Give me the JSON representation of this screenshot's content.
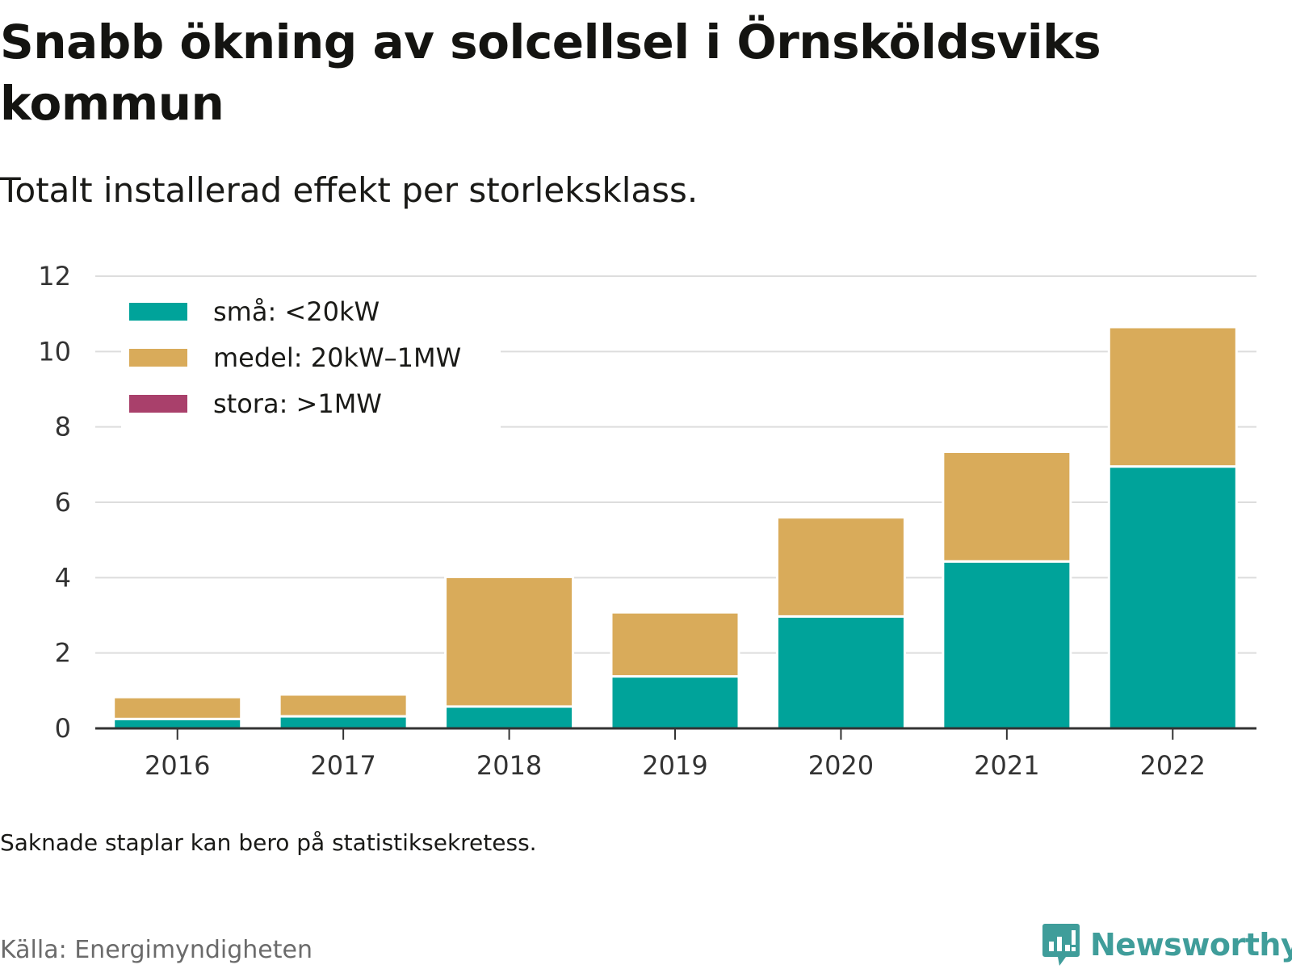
{
  "title": "Snabb ökning av solcellsel i Örnsköldsviks kommun",
  "subtitle": "Totalt installerad effekt per storleksklass.",
  "note": "Saknade staplar kan bero på statistiksekretess.",
  "source": "Källa: Energimyndigheten",
  "brand": {
    "name": "Newsworthy",
    "logo_icon": "bar-chart-speech-bubble-icon"
  },
  "colors": {
    "sma": "#00a39a",
    "medel": "#d9ab5a",
    "stora": "#a9406b",
    "grid": "#dddddd",
    "axis": "#333333"
  },
  "chart_data": {
    "type": "bar",
    "stacked": true,
    "categories": [
      "2016",
      "2017",
      "2018",
      "2019",
      "2020",
      "2021",
      "2022"
    ],
    "series": [
      {
        "name": "små: <20kW",
        "color": "#00a39a",
        "values": [
          0.25,
          0.32,
          0.58,
          1.38,
          2.97,
          4.43,
          6.95
        ]
      },
      {
        "name": "medel: 20kW–1MW",
        "color": "#d9ab5a",
        "values": [
          0.58,
          0.58,
          3.44,
          1.7,
          2.63,
          2.91,
          3.7
        ]
      },
      {
        "name": "stora: >1MW",
        "color": "#a9406b",
        "values": [
          0,
          0,
          0,
          0,
          0,
          0,
          0
        ]
      }
    ],
    "ylim": [
      0,
      12
    ],
    "yticks": [
      0,
      2,
      4,
      6,
      8,
      10,
      12
    ],
    "grid": true,
    "legend_position": "top-left"
  }
}
